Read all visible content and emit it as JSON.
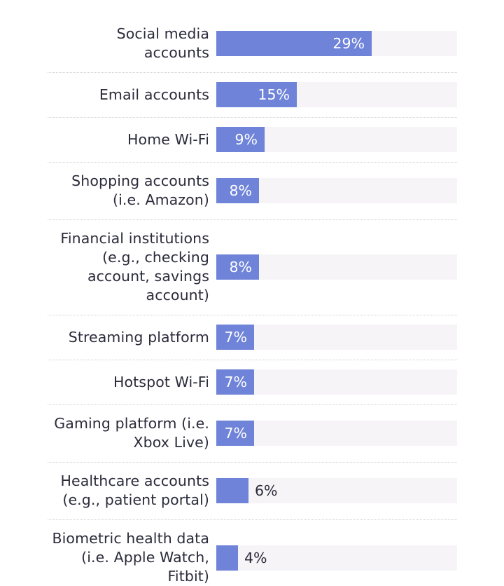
{
  "chart_data": {
    "type": "bar",
    "orientation": "horizontal",
    "title": "",
    "xlabel": "",
    "ylabel": "",
    "xlim": [
      0,
      45
    ],
    "bar_color": "#6f83d9",
    "track_color": "#f6f4f7",
    "categories": [
      [
        "Social media",
        "accounts"
      ],
      [
        "Email accounts"
      ],
      [
        "Home Wi-Fi"
      ],
      [
        "Shopping accounts",
        "(i.e. Amazon)"
      ],
      [
        "Financial institutions",
        "(e.g., checking",
        "account, savings",
        "account)"
      ],
      [
        "Streaming platform"
      ],
      [
        "Hotspot Wi-Fi"
      ],
      [
        "Gaming platform (i.e.",
        "Xbox Live)"
      ],
      [
        "Healthcare accounts",
        "(e.g., patient portal)"
      ],
      [
        "Biometric health data",
        "(i.e. Apple Watch,",
        "Fitbit)"
      ]
    ],
    "values": [
      29,
      15,
      9,
      8,
      8,
      7,
      7,
      7,
      6,
      4
    ],
    "value_labels": [
      "29%",
      "15%",
      "9%",
      "8%",
      "8%",
      "7%",
      "7%",
      "7%",
      "6%",
      "4%"
    ]
  }
}
